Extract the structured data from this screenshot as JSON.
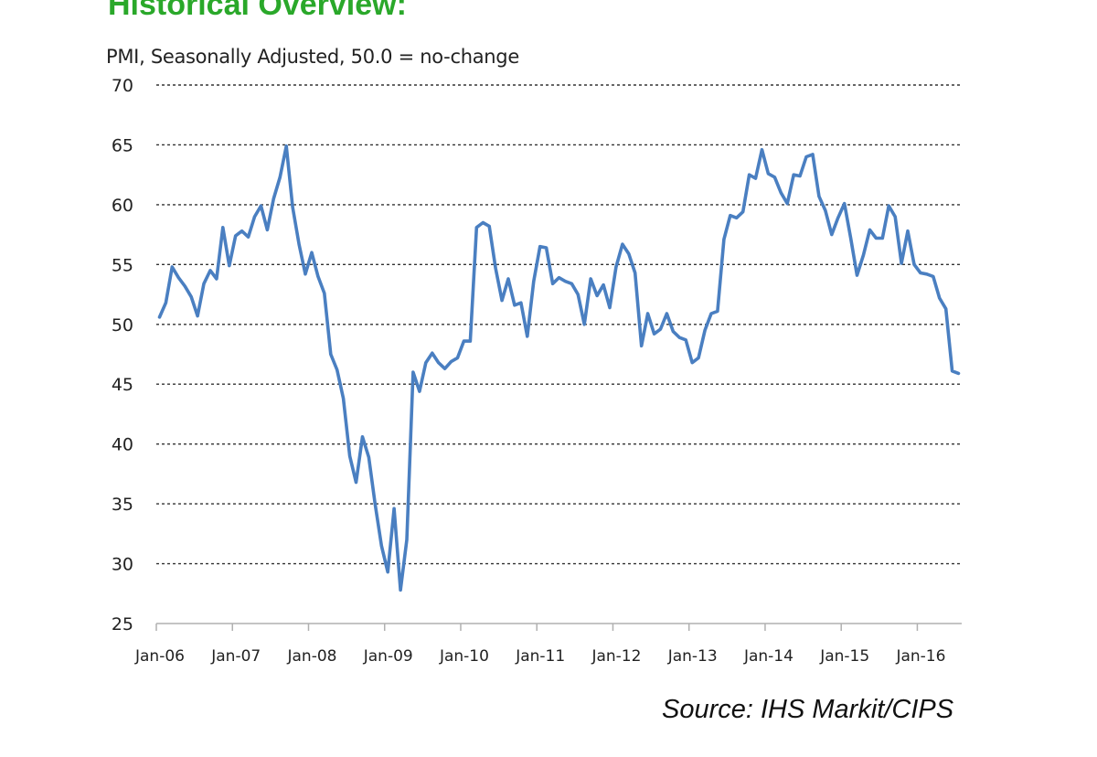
{
  "heading": "Historical Overview:",
  "source": "Source: IHS Markit/CIPS",
  "colors": {
    "heading": "#2aa82a",
    "line": "#4a7fc1",
    "grid": "#333333"
  },
  "chart_data": {
    "type": "line",
    "title": "PMI, Seasonally Adjusted, 50.0 = no-change",
    "xlabel": "",
    "ylabel": "",
    "ylim": [
      25,
      70
    ],
    "yticks": [
      25,
      30,
      35,
      40,
      45,
      50,
      55,
      60,
      65,
      70
    ],
    "xlim": [
      "Jan-06",
      "Jul-16"
    ],
    "xtick_labels": [
      "Jan-06",
      "Jan-07",
      "Jan-08",
      "Jan-09",
      "Jan-10",
      "Jan-11",
      "Jan-12",
      "Jan-13",
      "Jan-14",
      "Jan-15",
      "Jan-16"
    ],
    "grid": "horizontal dashed",
    "legend": "none",
    "series": [
      {
        "start": "Jan-06",
        "frequency": "monthly",
        "values": [
          50.6,
          51.8,
          54.8,
          53.9,
          53.2,
          52.3,
          50.7,
          53.4,
          54.5,
          53.8,
          58.1,
          54.9,
          57.4,
          57.8,
          57.3,
          59.0,
          59.9,
          57.9,
          60.5,
          62.3,
          64.9,
          59.8,
          56.7,
          54.2,
          56.0,
          54.0,
          52.6,
          47.5,
          46.2,
          43.8,
          39.0,
          36.8,
          40.6,
          38.9,
          35.0,
          31.5,
          29.3,
          34.6,
          27.8,
          32.0,
          46.0,
          44.4,
          46.8,
          47.6,
          46.8,
          46.3,
          46.9,
          47.2,
          48.6,
          48.6,
          58.1,
          58.5,
          58.2,
          54.7,
          52.0,
          53.8,
          51.6,
          51.8,
          49.0,
          53.6,
          56.5,
          56.4,
          53.4,
          53.9,
          53.6,
          53.4,
          52.5,
          50.0,
          53.8,
          52.4,
          53.3,
          51.4,
          54.8,
          56.7,
          55.9,
          54.3,
          48.2,
          50.9,
          49.2,
          49.6,
          50.9,
          49.4,
          48.9,
          48.7,
          46.8,
          47.2,
          49.5,
          50.9,
          51.1,
          57.1,
          59.1,
          58.9,
          59.4,
          62.5,
          62.2,
          64.6,
          62.6,
          62.3,
          61.0,
          60.1,
          62.5,
          62.4,
          64.0,
          64.2,
          60.7,
          59.5,
          57.5,
          58.9,
          60.1,
          57.2,
          54.1,
          55.8,
          57.9,
          57.2,
          57.2,
          59.9,
          59.0,
          55.1,
          57.8,
          55.0,
          54.3,
          54.2,
          54.0,
          52.2,
          51.3,
          46.1,
          45.9
        ]
      }
    ]
  }
}
